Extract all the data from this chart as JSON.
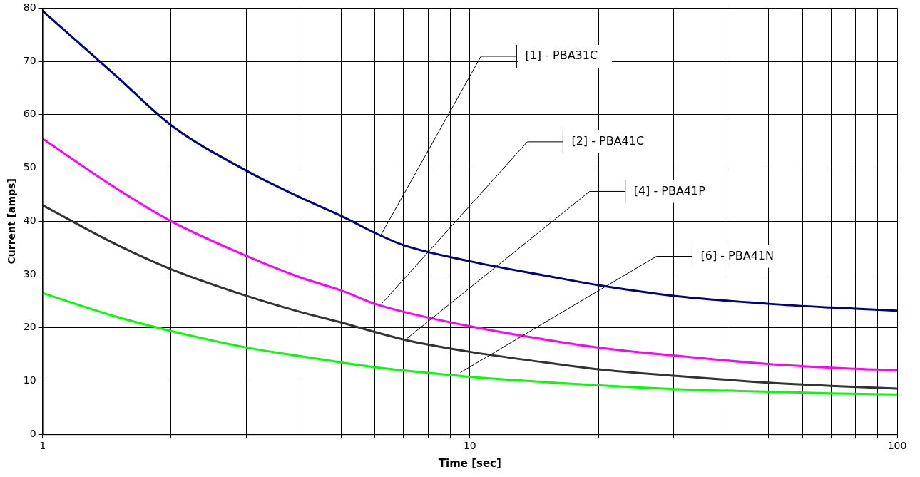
{
  "chart_data": {
    "type": "line",
    "xlabel": "Time [sec]",
    "ylabel": "Current [amps]",
    "log": "x",
    "grid": true,
    "legend": false,
    "marker": "none",
    "line_style": "solid",
    "xlim": [
      1,
      100
    ],
    "ylim": [
      0,
      80
    ],
    "xticks": [
      1,
      {
        "value": 2,
        "label": null
      },
      {
        "value": 3,
        "label": null
      },
      {
        "value": 4,
        "label": null
      },
      {
        "value": 5,
        "label": null
      },
      {
        "value": 6,
        "label": null
      },
      {
        "value": 7,
        "label": null
      },
      {
        "value": 8,
        "label": null
      },
      {
        "value": 9,
        "label": null
      },
      10,
      {
        "value": 20,
        "label": null
      },
      {
        "value": 30,
        "label": null
      },
      {
        "value": 40,
        "label": null
      },
      {
        "value": 50,
        "label": null
      },
      {
        "value": 60,
        "label": null
      },
      {
        "value": 70,
        "label": null
      },
      {
        "value": 80,
        "label": null
      },
      {
        "value": 90,
        "label": null
      },
      100
    ],
    "yticks": [
      0,
      10,
      20,
      30,
      40,
      50,
      60,
      70,
      80
    ],
    "x": [
      1,
      1.5,
      2,
      3,
      4,
      5,
      6,
      7,
      10,
      15,
      20,
      30,
      50,
      70,
      100
    ],
    "series": [
      {
        "color": "#000080",
        "values": [
          79.5,
          67,
          58,
          49.5,
          44.5,
          41,
          37.8,
          35.5,
          32.5,
          29.8,
          28,
          26,
          24.5,
          23.8,
          23.2
        ]
      },
      {
        "color": "#ff00ff",
        "values": [
          55.5,
          46,
          40,
          33.5,
          29.5,
          27,
          24.5,
          23,
          20.3,
          17.8,
          16.3,
          14.8,
          13.2,
          12.5,
          12
        ]
      },
      {
        "color": "#333333",
        "values": [
          43,
          35.5,
          31,
          26,
          23,
          21,
          19.2,
          17.8,
          15.5,
          13.5,
          12.2,
          11,
          9.7,
          9.1,
          8.6
        ]
      },
      {
        "color": "#00ff00",
        "values": [
          26.5,
          22,
          19.4,
          16.3,
          14.7,
          13.5,
          12.6,
          12,
          10.8,
          9.8,
          9.2,
          8.5,
          8,
          7.7,
          7.5
        ]
      }
    ],
    "annotations": [
      {
        "text": "[1] - PBA31C",
        "x": 6.2,
        "y": 37.5
      },
      {
        "text": "[2] - PBA41C",
        "x": 6.2,
        "y": 24.4
      },
      {
        "text": "[4] - PBA41P",
        "x": 7.1,
        "y": 17.9
      },
      {
        "text": "[6] - PBA41N",
        "x": 9.5,
        "y": 11.6
      }
    ]
  }
}
